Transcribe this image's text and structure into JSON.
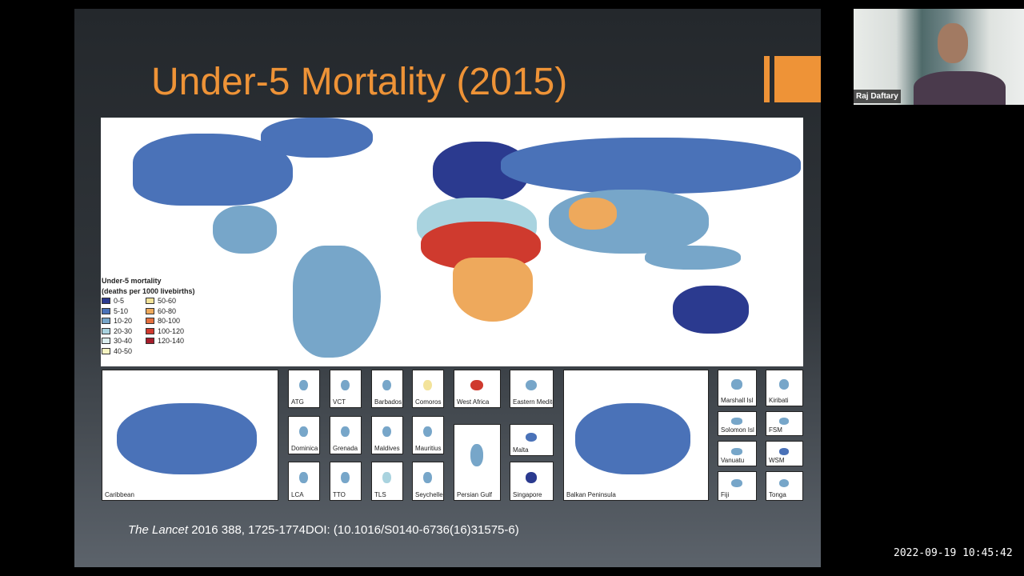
{
  "slide": {
    "title": "Under-5 Mortality (2015)",
    "citation_journal": "The Lancet",
    "citation_rest": " 2016 388, 1725-1774DOI: (10.1016/S0140-6736(16)31575-6)",
    "legend": {
      "title": "Under-5 mortality",
      "subtitle": "(deaths per 1000 livebirths)",
      "items": [
        {
          "label": "0-5",
          "color": "#2b3a8f"
        },
        {
          "label": "50-60",
          "color": "#f3e39a"
        },
        {
          "label": "5-10",
          "color": "#4a72b8"
        },
        {
          "label": "60-80",
          "color": "#eea95c"
        },
        {
          "label": "10-20",
          "color": "#77a6c9"
        },
        {
          "label": "80-100",
          "color": "#e4703f"
        },
        {
          "label": "20-30",
          "color": "#a9d3df"
        },
        {
          "label": "100-120",
          "color": "#cf3a2e"
        },
        {
          "label": "30-40",
          "color": "#dcefef"
        },
        {
          "label": "120-140",
          "color": "#a51d2a"
        },
        {
          "label": "40-50",
          "color": "#f7f5c2"
        }
      ]
    },
    "insets": [
      "Caribbean",
      "ATG",
      "VCT",
      "Barbados",
      "Comoros",
      "West Africa",
      "Eastern Mediterranean",
      "Dominica",
      "Grenada",
      "Maldives",
      "Mauritius",
      "Persian Gulf",
      "Malta",
      "LCA",
      "TTO",
      "TLS",
      "Seychelles",
      "Singapore",
      "Balkan Peninsula",
      "Marshall Isl",
      "Kiribati",
      "Solomon Isl",
      "FSM",
      "Vanuatu",
      "WSM",
      "Fiji",
      "Tonga"
    ]
  },
  "webcam": {
    "name": "Raj Daftary"
  },
  "timestamp": "2022-09-19 10:45:42"
}
